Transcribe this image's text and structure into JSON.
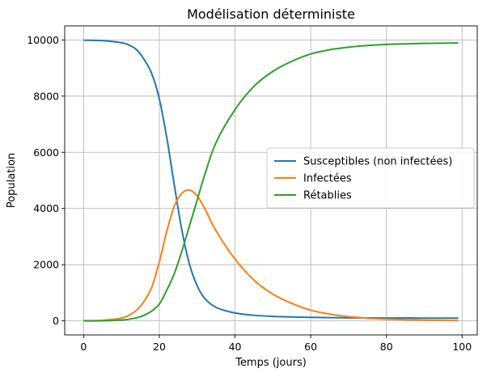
{
  "chart_data": {
    "type": "line",
    "title": "Modélisation déterministe",
    "xlabel": "Temps (jours)",
    "ylabel": "Population",
    "xlim": [
      -5,
      104
    ],
    "ylim": [
      -500,
      10500
    ],
    "xticks": [
      0,
      20,
      40,
      60,
      80,
      100
    ],
    "yticks": [
      0,
      2000,
      4000,
      6000,
      8000,
      10000
    ],
    "grid": true,
    "legend_position": "center-right",
    "x": [
      0,
      5,
      10,
      12,
      14,
      16,
      18,
      20,
      22,
      24,
      26,
      28,
      30,
      32,
      35,
      40,
      45,
      50,
      55,
      60,
      65,
      70,
      75,
      80,
      85,
      90,
      95,
      99
    ],
    "series": [
      {
        "name": "Susceptibles (non infectées)",
        "color": "#1f77b4",
        "values": [
          9990,
          9975,
          9900,
          9820,
          9650,
          9300,
          8800,
          7900,
          6500,
          4800,
          3200,
          2000,
          1250,
          800,
          480,
          280,
          200,
          160,
          140,
          125,
          115,
          110,
          105,
          100,
          100,
          98,
          97,
          96
        ]
      },
      {
        "name": "Infectées",
        "color": "#ff7f0e",
        "values": [
          5,
          20,
          100,
          200,
          380,
          700,
          1200,
          2100,
          3200,
          4100,
          4550,
          4650,
          4450,
          4000,
          3200,
          2200,
          1450,
          950,
          620,
          380,
          240,
          150,
          95,
          60,
          40,
          25,
          18,
          12
        ]
      },
      {
        "name": "Rétablies",
        "color": "#2ca02c",
        "values": [
          0,
          5,
          30,
          60,
          110,
          200,
          350,
          600,
          1100,
          1700,
          2500,
          3400,
          4300,
          5200,
          6350,
          7520,
          8350,
          8880,
          9240,
          9500,
          9650,
          9740,
          9800,
          9840,
          9860,
          9877,
          9885,
          9892
        ]
      }
    ]
  }
}
